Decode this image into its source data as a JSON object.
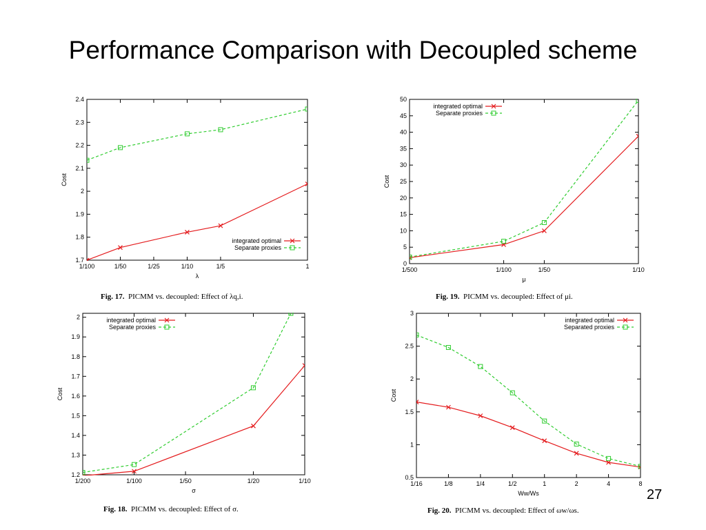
{
  "slide": {
    "title": "Performance Comparison with Decoupled scheme",
    "page_number": "27"
  },
  "colors": {
    "series_red": "#e41a1c",
    "series_green": "#2ecc2e",
    "axis": "#000000"
  },
  "chart_data": [
    {
      "id": "fig17",
      "type": "line",
      "title": "",
      "xlabel": "λ",
      "ylabel": "Cost",
      "caption_fig": "Fig. 17.",
      "caption_text": "PICMM vs. decoupled: Effect of λq,i.",
      "x_ticks": [
        "1/100",
        "1/50",
        "1/25",
        "1/10",
        "1/5",
        "1"
      ],
      "x_tick_pos": [
        0,
        1,
        2,
        3,
        4,
        6.6
      ],
      "xlim": [
        0,
        6.6
      ],
      "ylim": [
        1.7,
        2.4
      ],
      "y_ticks": [
        1.7,
        1.8,
        1.9,
        2.0,
        2.1,
        2.2,
        2.3,
        2.4
      ],
      "y_tick_labels": [
        "1.7",
        "1.8",
        "1.9",
        "2",
        "2.1",
        "2.2",
        "2.3",
        "2.4"
      ],
      "legend_position": "bottom-right",
      "series": [
        {
          "name": "integrated optimal",
          "color": "#e41a1c",
          "marker": "x",
          "dash": "",
          "x": [
            0,
            1,
            3,
            4,
            6.6
          ],
          "y": [
            1.7,
            1.755,
            1.822,
            1.85,
            2.032
          ]
        },
        {
          "name": "Separate proxies",
          "color": "#2ecc2e",
          "marker": "square",
          "dash": "4,3",
          "x": [
            0,
            1,
            3,
            4,
            6.6
          ],
          "y": [
            2.135,
            2.19,
            2.25,
            2.268,
            2.358
          ]
        }
      ]
    },
    {
      "id": "fig19",
      "type": "line",
      "title": "",
      "xlabel": "μ",
      "ylabel": "Cost",
      "caption_fig": "Fig. 19.",
      "caption_text": "PICMM vs. decoupled: Effect of μi.",
      "x_ticks": [
        "1/500",
        "1/100",
        "1/50",
        "1/10"
      ],
      "x_tick_pos": [
        0,
        2.32,
        3.32,
        5.64
      ],
      "xlim": [
        0,
        5.64
      ],
      "ylim": [
        0,
        50
      ],
      "y_ticks": [
        0,
        5,
        10,
        15,
        20,
        25,
        30,
        35,
        40,
        45,
        50
      ],
      "y_tick_labels": [
        "0",
        "5",
        "10",
        "15",
        "20",
        "25",
        "30",
        "35",
        "40",
        "45",
        "50"
      ],
      "legend_position": "top-left",
      "series": [
        {
          "name": "integrated optimal",
          "color": "#e41a1c",
          "marker": "x",
          "dash": "",
          "x": [
            0,
            2.32,
            3.32,
            5.64
          ],
          "y": [
            1.8,
            5.8,
            10.0,
            38.8
          ]
        },
        {
          "name": "Separate proxies",
          "color": "#2ecc2e",
          "marker": "square",
          "dash": "4,3",
          "x": [
            0,
            2.32,
            3.32,
            5.64
          ],
          "y": [
            2.0,
            6.8,
            12.5,
            49.7
          ]
        }
      ]
    },
    {
      "id": "fig18",
      "type": "line",
      "title": "",
      "xlabel": "σ",
      "ylabel": "Cost",
      "caption_fig": "Fig. 18.",
      "caption_text": "PICMM vs. decoupled: Effect of σ.",
      "x_ticks": [
        "1/200",
        "1/100",
        "1/50",
        "1/20",
        "1/10"
      ],
      "x_tick_pos": [
        0,
        1,
        2,
        3.32,
        4.32
      ],
      "xlim": [
        0,
        4.32
      ],
      "ylim": [
        1.2,
        2.02
      ],
      "y_ticks": [
        1.2,
        1.3,
        1.4,
        1.5,
        1.6,
        1.7,
        1.8,
        1.9,
        2.0
      ],
      "y_tick_labels": [
        "1.2",
        "1.3",
        "1.4",
        "1.5",
        "1.6",
        "1.7",
        "1.8",
        "1.9",
        "2"
      ],
      "legend_position": "top-left",
      "series": [
        {
          "name": "integrated optimal",
          "color": "#e41a1c",
          "marker": "x",
          "dash": "",
          "x": [
            0,
            1,
            3.32,
            4.32
          ],
          "y": [
            1.195,
            1.218,
            1.448,
            1.755
          ]
        },
        {
          "name": "Separate proxies",
          "color": "#2ecc2e",
          "marker": "square",
          "dash": "4,3",
          "x": [
            0,
            1,
            3.32,
            4.05
          ],
          "y": [
            1.212,
            1.252,
            1.642,
            2.02
          ]
        }
      ]
    },
    {
      "id": "fig20",
      "type": "line",
      "title": "",
      "xlabel": "Ww/Ws",
      "ylabel": "Cost",
      "caption_fig": "Fig. 20.",
      "caption_text": "PICMM vs. decoupled: Effect of ωw/ωs.",
      "x_ticks": [
        "1/16",
        "1/8",
        "1/4",
        "1/2",
        "1",
        "2",
        "4",
        "8"
      ],
      "x_tick_pos": [
        0,
        1,
        2,
        3,
        4,
        5,
        6,
        7
      ],
      "xlim": [
        0,
        7
      ],
      "ylim": [
        0.5,
        3.0
      ],
      "y_ticks": [
        0.5,
        1.0,
        1.5,
        2.0,
        2.5,
        3.0
      ],
      "y_tick_labels": [
        "0.5",
        "1",
        "1.5",
        "2",
        "2.5",
        "3"
      ],
      "legend_position": "top-right",
      "series": [
        {
          "name": "integrated optimal",
          "color": "#e41a1c",
          "marker": "x",
          "dash": "",
          "x": [
            0,
            1,
            2,
            3,
            4,
            5,
            6,
            7
          ],
          "y": [
            1.65,
            1.57,
            1.44,
            1.26,
            1.06,
            0.87,
            0.73,
            0.66
          ]
        },
        {
          "name": "Separated proxies",
          "color": "#2ecc2e",
          "marker": "square",
          "dash": "4,3",
          "x": [
            0,
            1,
            2,
            3,
            4,
            5,
            6,
            7
          ],
          "y": [
            2.67,
            2.48,
            2.19,
            1.79,
            1.36,
            1.01,
            0.79,
            0.67
          ]
        }
      ]
    }
  ]
}
